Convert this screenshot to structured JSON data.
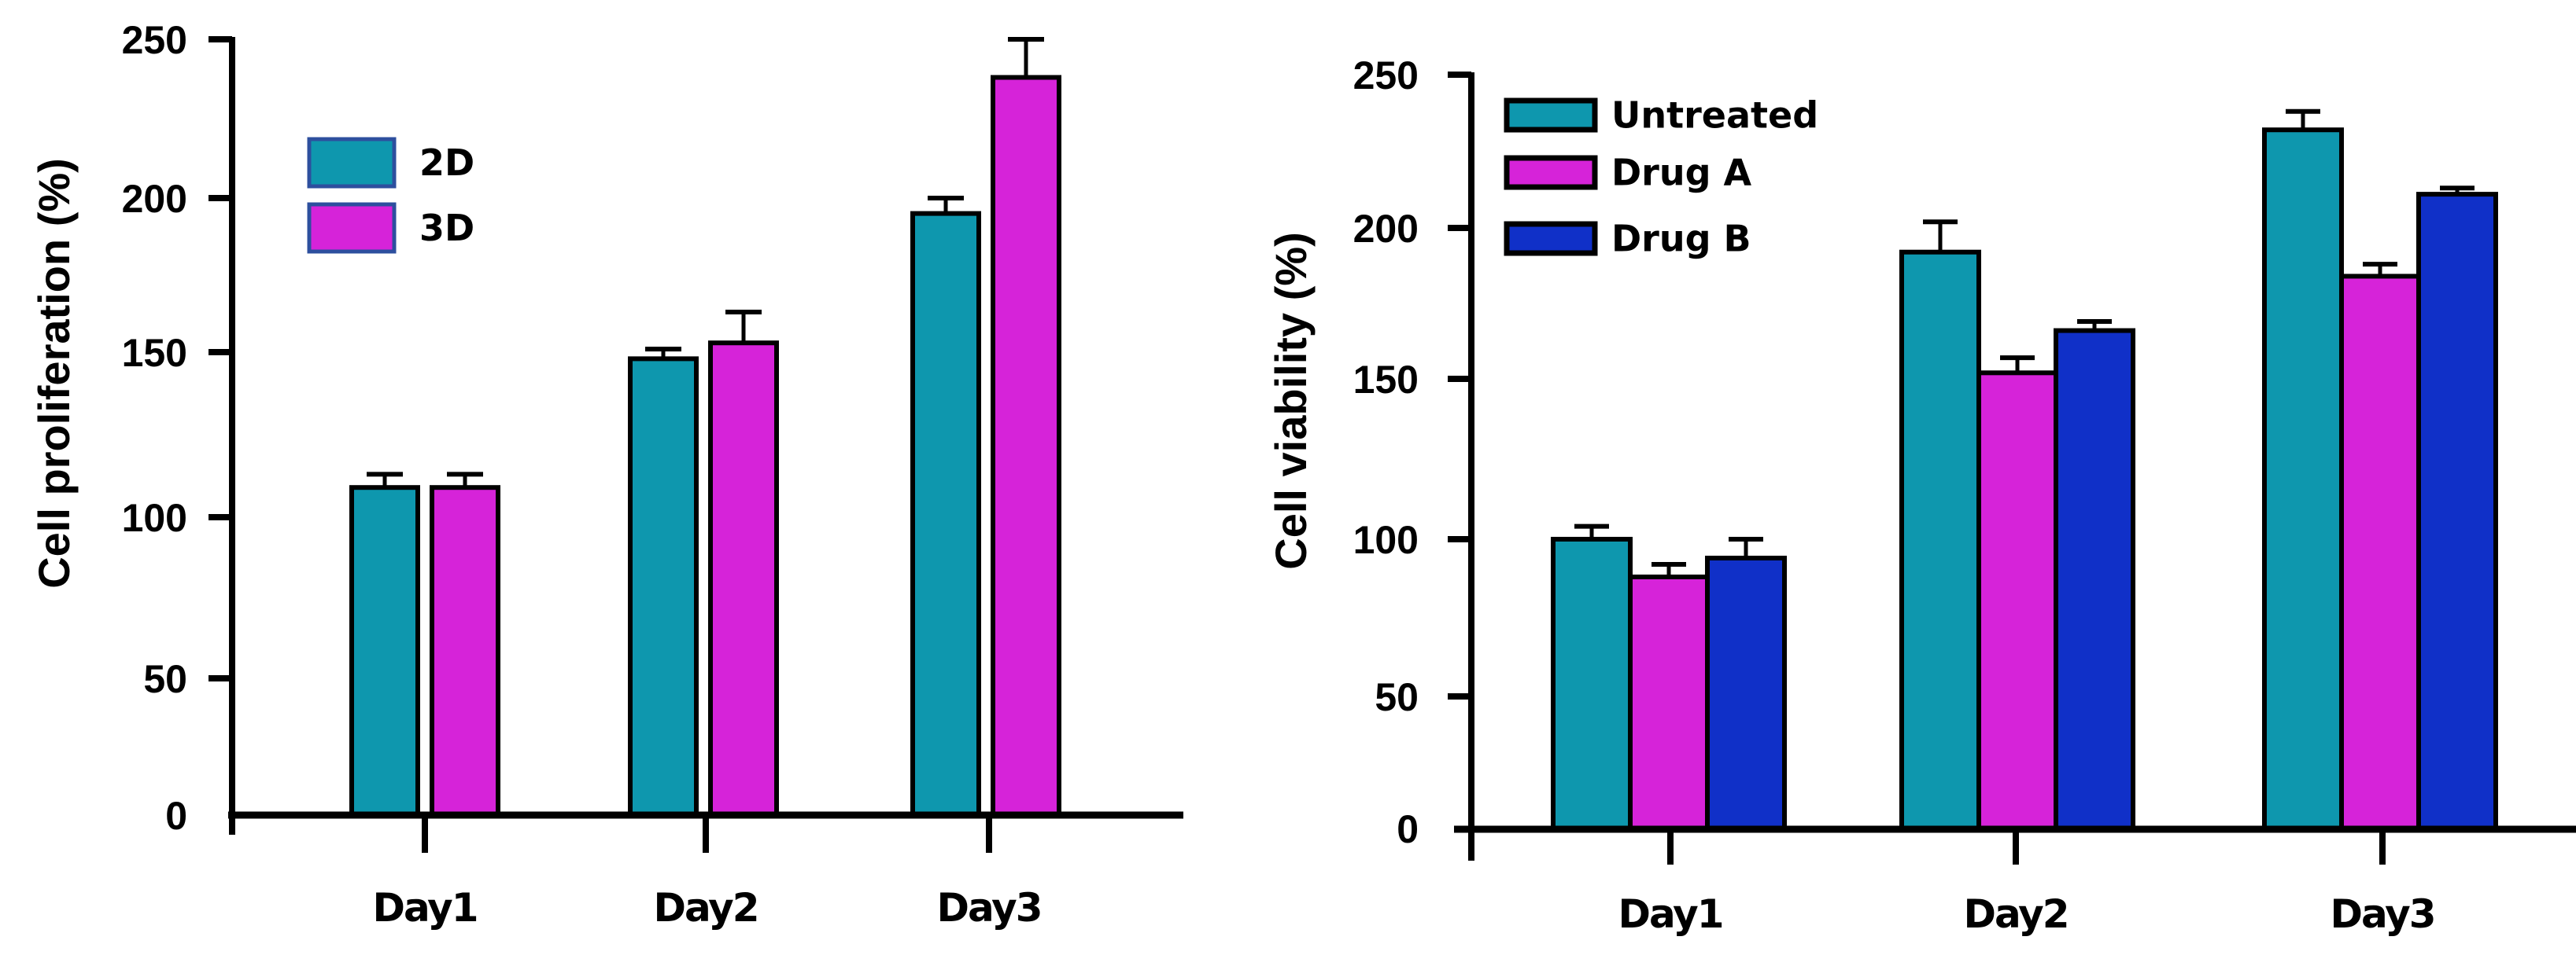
{
  "chart_data": [
    {
      "type": "bar",
      "ylabel": "Cell proliferation (%)",
      "xlabel": "",
      "ylim": [
        0,
        250
      ],
      "yticks": [
        "0",
        "50",
        "100",
        "150",
        "200",
        "250"
      ],
      "categories": [
        "Day1",
        "Day2",
        "Day3"
      ],
      "legend_position": "top-left",
      "legend_border": "#2d4f9e",
      "series": [
        {
          "name": "2D",
          "color": "#0e97ae",
          "values": [
            109,
            148,
            195
          ],
          "error_upper": [
            113,
            151,
            200
          ]
        },
        {
          "name": "3D",
          "color": "#d623d9",
          "values": [
            109,
            153,
            238
          ],
          "error_upper": [
            113,
            163,
            250
          ]
        }
      ]
    },
    {
      "type": "bar",
      "ylabel": "Cell viability (%)",
      "xlabel": "",
      "ylim": [
        0,
        250
      ],
      "yticks": [
        "0",
        "50",
        "100",
        "150",
        "200",
        "250"
      ],
      "categories": [
        "Day1",
        "Day2",
        "Day3"
      ],
      "legend_position": "top-left",
      "legend_border": "#000000",
      "series": [
        {
          "name": "Untreated",
          "color": "#0e97ae",
          "values": [
            100,
            192,
            232
          ],
          "error_upper": [
            104,
            202,
            238
          ]
        },
        {
          "name": "Drug A",
          "color": "#d623d9",
          "values": [
            88,
            152,
            184
          ],
          "error_upper": [
            92,
            157,
            188
          ]
        },
        {
          "name": "Drug B",
          "color": "#1030c8",
          "values": [
            94,
            166,
            211
          ],
          "error_upper": [
            100,
            169,
            213
          ]
        }
      ]
    }
  ]
}
